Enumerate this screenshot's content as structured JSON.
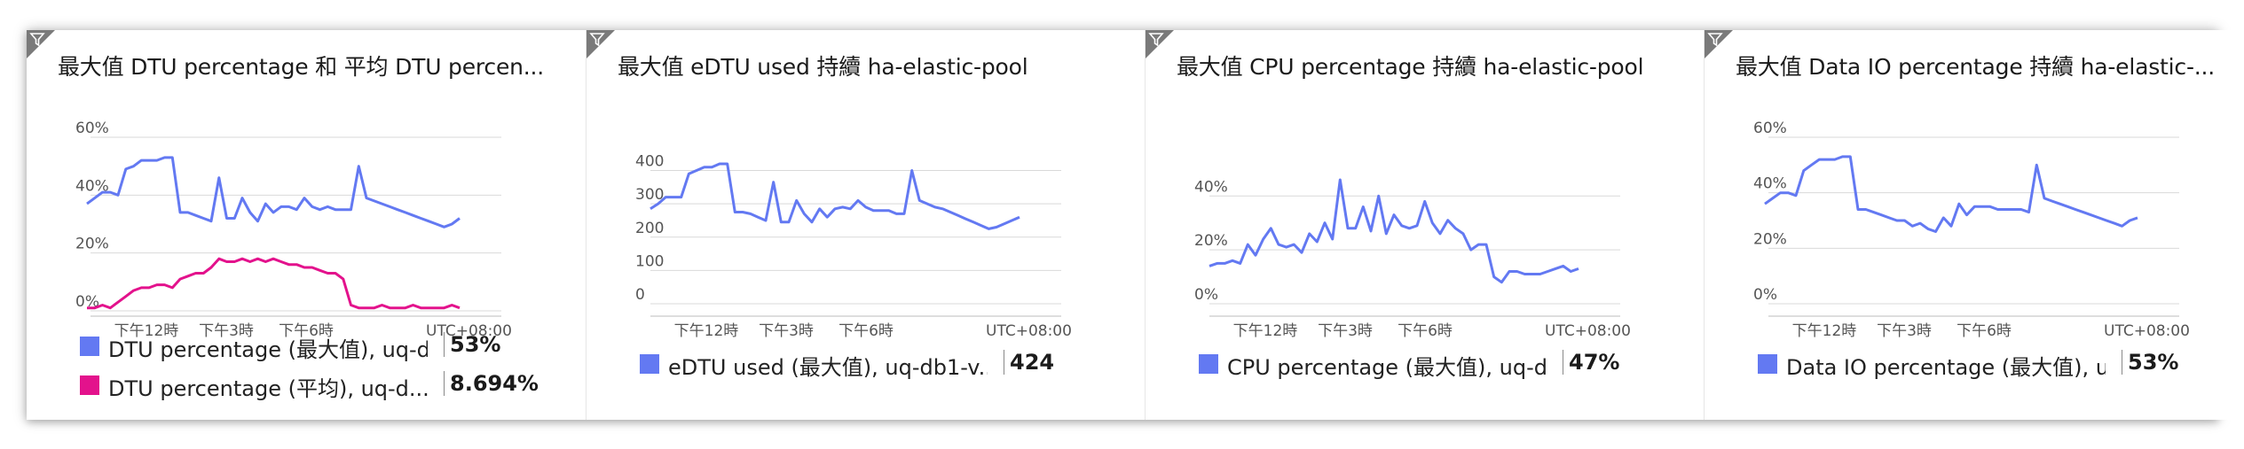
{
  "colors": {
    "blue": "#6379f2",
    "pink": "#e3128c",
    "corner": "#7a7a7a"
  },
  "icons": {
    "tile_corner": "filter-icon"
  },
  "timezone_label": "UTC+08:00",
  "x_tick_labels": [
    "下午12時",
    "下午3時",
    "下午6時"
  ],
  "tiles": [
    {
      "title": "最大值 DTU percentage 和 平均 DTU percen...",
      "legend": [
        {
          "label": "DTU percentage (最大值), uq-d...",
          "value": "53%",
          "color": "#6379f2"
        },
        {
          "label": "DTU percentage (平均), uq-d...",
          "value": "8.694%",
          "color": "#e3128c"
        }
      ]
    },
    {
      "title": "最大值 eDTU used 持續 ha-elastic-pool",
      "legend": [
        {
          "label": "eDTU used (最大值), uq-db1-v...",
          "value": "424",
          "color": "#6379f2"
        }
      ]
    },
    {
      "title": "最大值 CPU percentage 持續 ha-elastic-pool",
      "legend": [
        {
          "label": "CPU percentage (最大值), uq-d...",
          "value": "47%",
          "color": "#6379f2"
        }
      ]
    },
    {
      "title": "最大值 Data IO percentage 持續 ha-elastic-...",
      "legend": [
        {
          "label": "Data IO percentage (最大值), u...",
          "value": "53%",
          "color": "#6379f2"
        }
      ]
    }
  ],
  "chart_data": [
    {
      "type": "line",
      "title": "最大值 DTU percentage 和 平均 DTU percen...",
      "x_tick_labels": [
        "下午12時",
        "下午3時",
        "下午6時"
      ],
      "timezone": "UTC+08:00",
      "y_tick_labels": [
        "60%",
        "40%",
        "20%",
        "0%"
      ],
      "y_ticks": [
        60,
        40,
        20,
        0
      ],
      "ylim": [
        0,
        60
      ],
      "grid": true,
      "series": [
        {
          "name": "DTU percentage (最大值), uq-d...",
          "color": "#6379f2",
          "x": [
            0,
            0.5,
            1,
            1.5,
            2,
            2.5,
            3,
            3.5,
            4,
            4.5,
            5,
            5.5,
            6,
            6.5,
            7,
            7.5,
            8,
            8.5,
            9,
            9.5,
            10,
            10.5,
            11,
            11.5,
            12,
            12.5,
            13,
            13.5,
            14,
            14.5,
            15,
            15.5,
            16,
            16.5,
            17,
            17.5,
            18,
            18.5,
            19,
            19.5,
            20,
            20.5,
            21,
            21.5,
            22,
            22.5,
            23,
            23.5,
            24
          ],
          "values": [
            37,
            39,
            41,
            41,
            40,
            49,
            50,
            52,
            52,
            52,
            53,
            53,
            34,
            34,
            33,
            32,
            31,
            46,
            32,
            32,
            39,
            34,
            31,
            37,
            34,
            36,
            36,
            35,
            39,
            36,
            35,
            36,
            35,
            35,
            35,
            50,
            39,
            38,
            37,
            36,
            35,
            34,
            33,
            32,
            31,
            30,
            29,
            30,
            32
          ]
        },
        {
          "name": "DTU percentage (平均), uq-d...",
          "color": "#e3128c",
          "x": [
            0,
            0.5,
            1,
            1.5,
            2,
            2.5,
            3,
            3.5,
            4,
            4.5,
            5,
            5.5,
            6,
            6.5,
            7,
            7.5,
            8,
            8.5,
            9,
            9.5,
            10,
            10.5,
            11,
            11.5,
            12,
            12.5,
            13,
            13.5,
            14,
            14.5,
            15,
            15.5,
            16,
            16.5,
            17,
            17.5,
            18,
            18.5,
            19,
            19.5,
            20,
            20.5,
            21,
            21.5,
            22,
            22.5,
            23,
            23.5,
            24
          ],
          "values": [
            1,
            1,
            2,
            1,
            3,
            5,
            7,
            8,
            8,
            9,
            9,
            8,
            11,
            12,
            13,
            13,
            15,
            18,
            17,
            17,
            18,
            17,
            18,
            17,
            18,
            17,
            16,
            16,
            15,
            15,
            14,
            13,
            13,
            11,
            2,
            1,
            1,
            1,
            2,
            1,
            1,
            1,
            2,
            1,
            1,
            1,
            1,
            2,
            1
          ]
        }
      ]
    },
    {
      "type": "line",
      "title": "最大值 eDTU used 持續 ha-elastic-pool",
      "x_tick_labels": [
        "下午12時",
        "下午3時",
        "下午6時"
      ],
      "timezone": "UTC+08:00",
      "y_tick_labels": [
        "400",
        "300",
        "200",
        "100",
        "0"
      ],
      "y_ticks": [
        400,
        300,
        200,
        100,
        0
      ],
      "ylim": [
        0,
        420
      ],
      "grid": true,
      "series": [
        {
          "name": "eDTU used (最大值), uq-db1-v...",
          "color": "#6379f2",
          "x": [
            0,
            0.5,
            1,
            1.5,
            2,
            2.5,
            3,
            3.5,
            4,
            4.5,
            5,
            5.5,
            6,
            6.5,
            7,
            7.5,
            8,
            8.5,
            9,
            9.5,
            10,
            10.5,
            11,
            11.5,
            12,
            12.5,
            13,
            13.5,
            14,
            14.5,
            15,
            15.5,
            16,
            16.5,
            17,
            17.5,
            18,
            18.5,
            19,
            19.5,
            20,
            20.5,
            21,
            21.5,
            22,
            22.5,
            23,
            23.5,
            24
          ],
          "values": [
            285,
            300,
            320,
            320,
            320,
            390,
            400,
            410,
            410,
            420,
            420,
            275,
            275,
            270,
            260,
            250,
            365,
            245,
            245,
            310,
            270,
            245,
            285,
            260,
            285,
            290,
            285,
            310,
            290,
            280,
            280,
            280,
            270,
            270,
            400,
            310,
            300,
            290,
            285,
            275,
            265,
            255,
            245,
            235,
            225,
            230,
            240,
            250,
            260
          ]
        }
      ]
    },
    {
      "type": "line",
      "title": "最大值 CPU percentage 持續 ha-elastic-pool",
      "x_tick_labels": [
        "下午12時",
        "下午3時",
        "下午6時"
      ],
      "timezone": "UTC+08:00",
      "y_tick_labels": [
        "40%",
        "20%",
        "0%"
      ],
      "y_ticks": [
        40,
        20,
        0
      ],
      "ylim": [
        0,
        47
      ],
      "grid": true,
      "series": [
        {
          "name": "CPU percentage (最大值), uq-d...",
          "color": "#6379f2",
          "x": [
            0,
            0.5,
            1,
            1.5,
            2,
            2.5,
            3,
            3.5,
            4,
            4.5,
            5,
            5.5,
            6,
            6.5,
            7,
            7.5,
            8,
            8.5,
            9,
            9.5,
            10,
            10.5,
            11,
            11.5,
            12,
            12.5,
            13,
            13.5,
            14,
            14.5,
            15,
            15.5,
            16,
            16.5,
            17,
            17.5,
            18,
            18.5,
            19,
            19.5,
            20,
            20.5,
            21,
            21.5,
            22,
            22.5,
            23,
            23.5,
            24
          ],
          "values": [
            14,
            15,
            15,
            16,
            15,
            22,
            18,
            24,
            28,
            22,
            21,
            22,
            19,
            26,
            23,
            30,
            24,
            46,
            28,
            28,
            36,
            27,
            40,
            26,
            33,
            29,
            28,
            29,
            38,
            30,
            26,
            31,
            28,
            26,
            20,
            22,
            22,
            10,
            8,
            12,
            12,
            11,
            11,
            11,
            12,
            13,
            14,
            12,
            13
          ]
        }
      ]
    },
    {
      "type": "line",
      "title": "最大值 Data IO percentage 持續 ha-elastic-...",
      "x_tick_labels": [
        "下午12時",
        "下午3時",
        "下午6時"
      ],
      "timezone": "UTC+08:00",
      "y_tick_labels": [
        "60%",
        "40%",
        "20%",
        "0%"
      ],
      "y_ticks": [
        60,
        40,
        20,
        0
      ],
      "ylim": [
        0,
        60
      ],
      "grid": true,
      "series": [
        {
          "name": "Data IO percentage (最大值), u...",
          "color": "#6379f2",
          "x": [
            0,
            0.5,
            1,
            1.5,
            2,
            2.5,
            3,
            3.5,
            4,
            4.5,
            5,
            5.5,
            6,
            6.5,
            7,
            7.5,
            8,
            8.5,
            9,
            9.5,
            10,
            10.5,
            11,
            11.5,
            12,
            12.5,
            13,
            13.5,
            14,
            14.5,
            15,
            15.5,
            16,
            16.5,
            17,
            17.5,
            18,
            18.5,
            19,
            19.5,
            20,
            20.5,
            21,
            21.5,
            22,
            22.5,
            23,
            23.5,
            24
          ],
          "values": [
            36,
            38,
            40,
            40,
            39,
            48,
            50,
            52,
            52,
            52,
            53,
            53,
            34,
            34,
            33,
            32,
            31,
            30,
            30,
            28,
            29,
            27,
            26,
            31,
            28,
            36,
            32,
            35,
            35,
            35,
            34,
            34,
            34,
            34,
            33,
            50,
            38,
            37,
            36,
            35,
            34,
            33,
            32,
            31,
            30,
            29,
            28,
            30,
            31
          ]
        }
      ]
    }
  ]
}
